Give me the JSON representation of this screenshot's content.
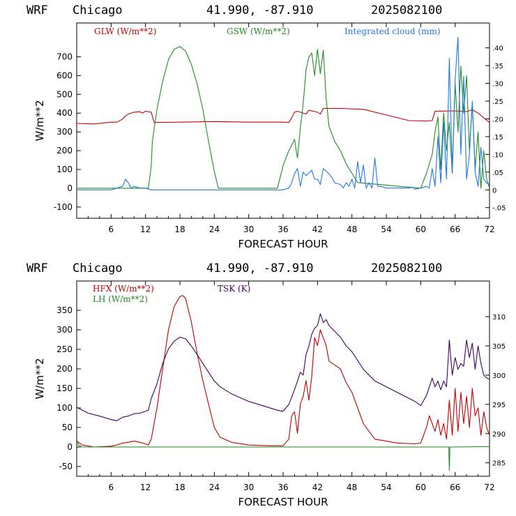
{
  "header": {
    "model": "WRF",
    "city": "Chicago",
    "coords": "41.990, -87.910",
    "run": "2025082100"
  },
  "colors": {
    "glw": "#c00000",
    "gsw": "#228b22",
    "cloud": "#1e78e0",
    "hfx": "#c00000",
    "lh": "#228b22",
    "tsk": "#400060"
  },
  "chart_data": [
    {
      "type": "line",
      "xlabel": "FORECAST HOUR",
      "ylabel": "W/m**2",
      "xlim": [
        0,
        72
      ],
      "xticks": [
        "6",
        "12",
        "18",
        "24",
        "30",
        "36",
        "42",
        "48",
        "54",
        "60",
        "66",
        "72"
      ],
      "ylim": [
        -160,
        880
      ],
      "yticks": [
        "-100",
        "0",
        "100",
        "200",
        "300",
        "400",
        "500",
        "600",
        "700"
      ],
      "y2lim": [
        -0.08,
        0.47
      ],
      "y2ticks": [
        "-.05",
        "0",
        ".05",
        ".10",
        ".15",
        ".20",
        ".25",
        ".30",
        ".35",
        ".40"
      ],
      "series": [
        {
          "name": "GLW (W/m**2)",
          "axis": "left",
          "color_key": "glw",
          "x": [
            0,
            3,
            6,
            7,
            8,
            8.5,
            9,
            10,
            11,
            11.5,
            12,
            13,
            13.5,
            18,
            24,
            30,
            36,
            37,
            37.5,
            38,
            38.5,
            40,
            40.5,
            42,
            42.5,
            43,
            46,
            50,
            54,
            58,
            61,
            62,
            62.5,
            66,
            68,
            69,
            70,
            71,
            72
          ],
          "values": [
            345,
            342,
            352,
            352,
            368,
            385,
            395,
            405,
            408,
            400,
            410,
            405,
            350,
            352,
            355,
            352,
            352,
            350,
            375,
            405,
            410,
            395,
            415,
            405,
            395,
            425,
            425,
            420,
            390,
            360,
            358,
            360,
            410,
            412,
            408,
            418,
            400,
            375,
            350
          ]
        },
        {
          "name": "GSW (W/m**2)",
          "axis": "left",
          "color_key": "gsw",
          "x": [
            0,
            12.5,
            13,
            13.2,
            14,
            15,
            16,
            17,
            18,
            19,
            20,
            21,
            22,
            23,
            24,
            24.7,
            35,
            36,
            37,
            38,
            38.5,
            39,
            39.5,
            40,
            40.5,
            41,
            41.5,
            42,
            42.5,
            43,
            43.5,
            44,
            45,
            46,
            47,
            48,
            49,
            60,
            61,
            62,
            62.5,
            63,
            63.5,
            64,
            64.5,
            65,
            65.5,
            66,
            66.5,
            67,
            67.5,
            68,
            68.5,
            69,
            69.5,
            70,
            70.5,
            71,
            71.5,
            72
          ],
          "values": [
            0,
            0,
            120,
            250,
            420,
            570,
            685,
            740,
            755,
            730,
            660,
            555,
            420,
            250,
            90,
            0,
            0,
            120,
            200,
            260,
            160,
            320,
            450,
            630,
            700,
            720,
            600,
            740,
            610,
            735,
            480,
            330,
            250,
            200,
            130,
            80,
            30,
            0,
            80,
            180,
            300,
            380,
            100,
            400,
            200,
            350,
            80,
            560,
            300,
            650,
            400,
            600,
            200,
            450,
            100,
            300,
            0,
            200,
            50,
            0
          ]
        },
        {
          "name": "Integrated cloud (mm)",
          "axis": "right",
          "color_key": "cloud",
          "x": [
            0,
            5,
            6,
            7,
            8,
            8.5,
            9,
            9.5,
            10,
            11,
            12,
            12.5,
            13,
            36,
            37,
            37.5,
            38,
            38.5,
            39,
            39.5,
            40,
            41,
            41.5,
            42,
            42.5,
            43,
            44,
            44.5,
            45,
            46,
            46.5,
            47,
            47.5,
            48,
            48.5,
            49,
            49.5,
            50,
            50.5,
            51,
            51.5,
            52,
            52.5,
            53,
            54,
            55,
            56,
            57,
            58,
            58.5,
            59,
            60,
            61,
            61.5,
            62,
            62.5,
            63,
            63.5,
            64,
            64.5,
            65,
            65.5,
            66,
            66.5,
            67,
            67.5,
            68,
            68.5,
            69,
            69.5,
            70,
            70.5,
            71,
            71.5,
            72
          ],
          "values": [
            0,
            0,
            0,
            0.005,
            0.01,
            0.03,
            0.02,
            0.005,
            0.01,
            0.005,
            0.005,
            0.002,
            0,
            0,
            0.005,
            0.02,
            0.045,
            0.06,
            0.01,
            0.05,
            0.04,
            0.055,
            0.03,
            0.03,
            0.015,
            0.06,
            0.045,
            0.035,
            0.02,
            0.015,
            0.005,
            0.02,
            0.01,
            0.03,
            0.005,
            0.08,
            0.02,
            0.07,
            0.005,
            0.02,
            0.005,
            0.09,
            0.01,
            0.01,
            0.005,
            0.005,
            0.005,
            0.005,
            0.005,
            0.008,
            0.002,
            0.005,
            0.01,
            0.005,
            0.06,
            0.01,
            0.15,
            0.02,
            0.19,
            0.03,
            0.37,
            0.05,
            0.31,
            0.43,
            0.1,
            0.32,
            0.03,
            0.1,
            0.25,
            0.05,
            0.01,
            0.12,
            0.03,
            0.02,
            0.015
          ]
        }
      ]
    },
    {
      "type": "line",
      "xlabel": "FORECAST HOUR",
      "ylabel": "W/m**2",
      "xlim": [
        0,
        72
      ],
      "xticks": [
        "6",
        "12",
        "18",
        "24",
        "30",
        "36",
        "42",
        "48",
        "54",
        "60",
        "66",
        "72"
      ],
      "ylim": [
        -75,
        425
      ],
      "yticks": [
        "-50",
        "0",
        "50",
        "100",
        "150",
        "200",
        "250",
        "300",
        "350"
      ],
      "y2lim": [
        282.7,
        316.1
      ],
      "y2ticks": [
        "285",
        "290",
        "295",
        "300",
        "305",
        "310"
      ],
      "series": [
        {
          "name": "HFX (W/m**2)",
          "axis": "left",
          "color_key": "hfx",
          "x": [
            0,
            1,
            3,
            6,
            7,
            8,
            9,
            10,
            11,
            12,
            12.5,
            13,
            14,
            15,
            16,
            17,
            18,
            18.5,
            19,
            19.5,
            20,
            21,
            22,
            23,
            24,
            25,
            27,
            30,
            34,
            36,
            37,
            37.5,
            38,
            38.5,
            39,
            39.5,
            40,
            40.5,
            41,
            41.5,
            42,
            42.5,
            43,
            43.5,
            44,
            45,
            46,
            47,
            48,
            49,
            50,
            52,
            56,
            59,
            60,
            61,
            61.5,
            62,
            62.5,
            63,
            63.5,
            64,
            64.5,
            65,
            65.5,
            66,
            66.5,
            67,
            67.5,
            68,
            68.5,
            69,
            69.5,
            70,
            70.5,
            71,
            71.5,
            72
          ],
          "values": [
            15,
            5,
            0,
            2,
            5,
            10,
            12,
            15,
            12,
            8,
            5,
            20,
            100,
            200,
            300,
            360,
            385,
            388,
            380,
            350,
            320,
            240,
            170,
            110,
            50,
            25,
            12,
            5,
            3,
            3,
            20,
            80,
            90,
            35,
            110,
            130,
            170,
            120,
            180,
            280,
            260,
            300,
            280,
            260,
            220,
            210,
            200,
            165,
            140,
            100,
            60,
            20,
            10,
            8,
            10,
            50,
            80,
            60,
            40,
            70,
            30,
            60,
            20,
            120,
            30,
            150,
            40,
            140,
            60,
            130,
            50,
            150,
            80,
            100,
            30,
            90,
            50,
            30
          ]
        },
        {
          "name": "LH (W/m**2)",
          "axis": "left",
          "color_key": "lh",
          "x": [
            0,
            0.3,
            1,
            64.9,
            65,
            65.1,
            66,
            72
          ],
          "values": [
            20,
            5,
            0,
            0,
            -60,
            0,
            0,
            1
          ]
        },
        {
          "name": "TSK (K)",
          "axis": "right",
          "color_key": "tsk",
          "x": [
            0,
            2,
            4,
            6,
            7,
            8,
            9,
            10,
            11,
            12,
            12.5,
            13,
            14,
            15,
            16,
            17,
            18,
            19,
            20,
            21,
            22,
            23,
            24,
            25,
            27,
            30,
            33,
            35,
            36,
            37,
            38,
            38.5,
            39,
            39.5,
            40,
            40.5,
            41,
            41.5,
            42,
            42.5,
            43,
            43.5,
            44,
            45,
            46,
            47,
            48,
            49,
            50,
            52,
            55,
            58,
            59,
            60,
            61,
            62,
            62.5,
            63,
            63.5,
            64,
            64.5,
            65,
            65.5,
            66,
            66.5,
            67,
            67.5,
            68,
            68.5,
            69,
            69.5,
            70,
            70.5,
            71,
            71.5,
            72
          ],
          "values": [
            294.5,
            293.5,
            293,
            292.4,
            292.2,
            292.8,
            293,
            293.4,
            293.5,
            293.8,
            294,
            296,
            298.5,
            302,
            304.5,
            305.8,
            306.5,
            306.2,
            305,
            303.5,
            302,
            300.5,
            299,
            298,
            296.8,
            295.5,
            294.6,
            294,
            293.8,
            295,
            297.5,
            299,
            300.5,
            300,
            303.5,
            305,
            307,
            308,
            308.5,
            310.5,
            309,
            309.5,
            308.5,
            307.5,
            306.5,
            305,
            304,
            302.5,
            301,
            299,
            297.5,
            296,
            295.5,
            294.8,
            296.5,
            299.5,
            298,
            299,
            297.5,
            299,
            298,
            306,
            300,
            303,
            301,
            302,
            301.5,
            306,
            303,
            305.5,
            301,
            305,
            302,
            300,
            299.5,
            299.3
          ]
        }
      ]
    }
  ]
}
